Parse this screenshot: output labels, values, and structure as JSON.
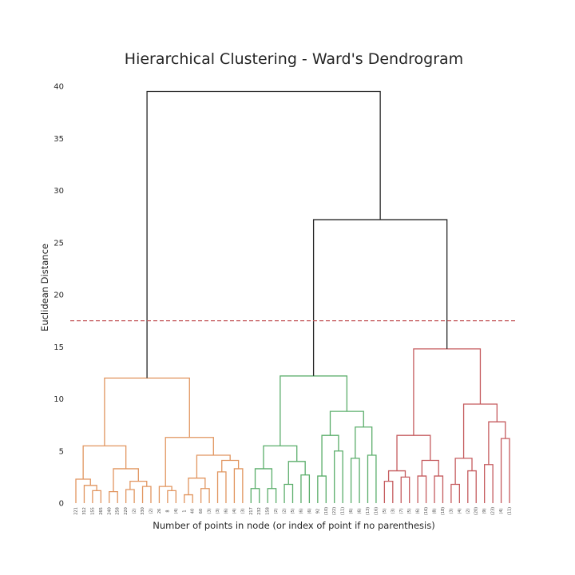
{
  "chart_data": {
    "type": "dendrogram",
    "title": "Hierarchical Clustering - Ward's Dendrogram",
    "xlabel": "Number of points in node (or index of point if no parenthesis)",
    "ylabel": "Euclidean Distance",
    "ylim": [
      0,
      40
    ],
    "yticks": [
      "0",
      "5",
      "10",
      "15",
      "20",
      "25",
      "30",
      "35",
      "40"
    ],
    "grid": false,
    "threshold": 17.5,
    "colors": {
      "c1": "#e1955f",
      "c2": "#5aad6a",
      "c3": "#c55b5e",
      "above": "#262626",
      "threshold": "#c55b5e"
    },
    "leaves": [
      "221",
      "312",
      "155",
      "265",
      "240",
      "258",
      "220",
      "(2)",
      "330",
      "(2)",
      "26",
      "8",
      "(4)",
      "1",
      "40",
      "60",
      "(3)",
      "(3)",
      "(6)",
      "(4)",
      "(3)",
      "217",
      "232",
      "158",
      "(2)",
      "(2)",
      "(5)",
      "(6)",
      "(6)",
      "92",
      "(10)",
      "(22)",
      "(11)",
      "(6)",
      "(6)",
      "(13)",
      "(16)",
      "(5)",
      "(3)",
      "(7)",
      "(5)",
      "(6)",
      "(16)",
      "(8)",
      "(18)",
      "(3)",
      "(4)",
      "(2)",
      "(20)",
      "(9)",
      "(23)",
      "(4)",
      "(11)"
    ],
    "merges": [
      {
        "l": 0,
        "r": 3,
        "h": 2.3,
        "color": "c1"
      },
      {
        "l": 1,
        "r": 2,
        "h": 1.7,
        "color": "c1"
      },
      {
        "l": "L2",
        "r": "L3",
        "h": 1.2,
        "color": "c1"
      },
      {
        "l": "L4",
        "r": "L5",
        "h": 1.1,
        "color": "c1"
      },
      {
        "l": "L6",
        "r": "L7",
        "h": 1.3,
        "color": "c1"
      },
      {
        "l": "L8",
        "r": "L9",
        "h": 1.6,
        "color": "c1"
      },
      {
        "l": 4,
        "r": 5,
        "h": 2.1,
        "color": "c1"
      },
      {
        "l": 3,
        "r": 6,
        "h": 3.3,
        "color": "c1"
      },
      {
        "l": 7,
        "r": 8,
        "h": 5.5,
        "color": "c1"
      },
      {
        "l": "L10",
        "r": "L11",
        "h": 1.6,
        "color": "c1"
      },
      {
        "l": 10,
        "r": "L12",
        "h": 1.2,
        "color": "c1"
      },
      {
        "l": "L13",
        "r": "L14",
        "h": 0.8,
        "color": "c1"
      },
      {
        "l": "L15",
        "r": "L16",
        "h": 1.4,
        "color": "c1"
      },
      {
        "l": 12,
        "r": 13,
        "h": 2.4,
        "color": "c1"
      },
      {
        "l": "L17",
        "r": "L18",
        "h": 3.0,
        "color": "c1"
      },
      {
        "l": "L19",
        "r": "L20",
        "h": 3.3,
        "color": "c1"
      },
      {
        "l": "L18b",
        "r": 16,
        "h": 4.1,
        "color": "c1"
      },
      {
        "l": 14,
        "r": 17,
        "h": 4.6,
        "color": "c1"
      },
      {
        "l": 11,
        "r": 18,
        "h": 6.3,
        "color": "c1"
      },
      {
        "l": 9,
        "r": 19,
        "h": 12.0,
        "color": "c1"
      },
      {
        "l": "L21",
        "r": "L22",
        "h": 1.4,
        "color": "c2"
      },
      {
        "l": "L23",
        "r": "L24",
        "h": 1.4,
        "color": "c2"
      },
      {
        "l": 21,
        "r": 22,
        "h": 3.3,
        "color": "c2"
      },
      {
        "l": "L25",
        "r": "L26",
        "h": 1.8,
        "color": "c2"
      },
      {
        "l": "L27",
        "r": "L28",
        "h": 2.7,
        "color": "c2"
      },
      {
        "l": 24,
        "r": 25,
        "h": 4.0,
        "color": "c2"
      },
      {
        "l": 23,
        "r": 26,
        "h": 5.5,
        "color": "c2"
      },
      {
        "l": "L29",
        "r": "L30",
        "h": 2.6,
        "color": "c2"
      },
      {
        "l": "L31",
        "r": "L32",
        "h": 5.0,
        "color": "c2"
      },
      {
        "l": 28,
        "r": 29,
        "h": 6.5,
        "color": "c2"
      },
      {
        "l": "L33",
        "r": "L34",
        "h": 4.3,
        "color": "c2"
      },
      {
        "l": "L35",
        "r": "L36",
        "h": 4.6,
        "color": "c2"
      },
      {
        "l": 31,
        "r": 32,
        "h": 7.3,
        "color": "c2"
      },
      {
        "l": 30,
        "r": 33,
        "h": 8.8,
        "color": "c2"
      },
      {
        "l": 27,
        "r": 34,
        "h": 12.2,
        "color": "c2"
      },
      {
        "l": "L37",
        "r": "L38",
        "h": 2.1,
        "color": "c3"
      },
      {
        "l": "L39",
        "r": "L40",
        "h": 2.5,
        "color": "c3"
      },
      {
        "l": 36,
        "r": 37,
        "h": 3.1,
        "color": "c3"
      },
      {
        "l": "L41",
        "r": "L42",
        "h": 2.6,
        "color": "c3"
      },
      {
        "l": "L43",
        "r": "L44",
        "h": 2.6,
        "color": "c3"
      },
      {
        "l": 39,
        "r": 40,
        "h": 4.1,
        "color": "c3"
      },
      {
        "l": 38,
        "r": 41,
        "h": 6.5,
        "color": "c3"
      },
      {
        "l": "L45",
        "r": "L46",
        "h": 1.8,
        "color": "c3"
      },
      {
        "l": "L47",
        "r": "L48",
        "h": 3.1,
        "color": "c3"
      },
      {
        "l": 43,
        "r": 44,
        "h": 4.3,
        "color": "c3"
      },
      {
        "l": "L49",
        "r": "L50",
        "h": 3.7,
        "color": "c3"
      },
      {
        "l": "L51",
        "r": "L52",
        "h": 6.2,
        "color": "c3"
      },
      {
        "l": 46,
        "r": 47,
        "h": 7.8,
        "color": "c3"
      },
      {
        "l": 45,
        "r": 48,
        "h": 9.5,
        "color": "c3"
      },
      {
        "l": 42,
        "r": 49,
        "h": 14.8,
        "color": "c3"
      },
      {
        "l": 35,
        "r": 50,
        "h": 27.2,
        "color": "above"
      },
      {
        "l": 20,
        "r": 51,
        "h": 39.5,
        "color": "above"
      }
    ]
  }
}
